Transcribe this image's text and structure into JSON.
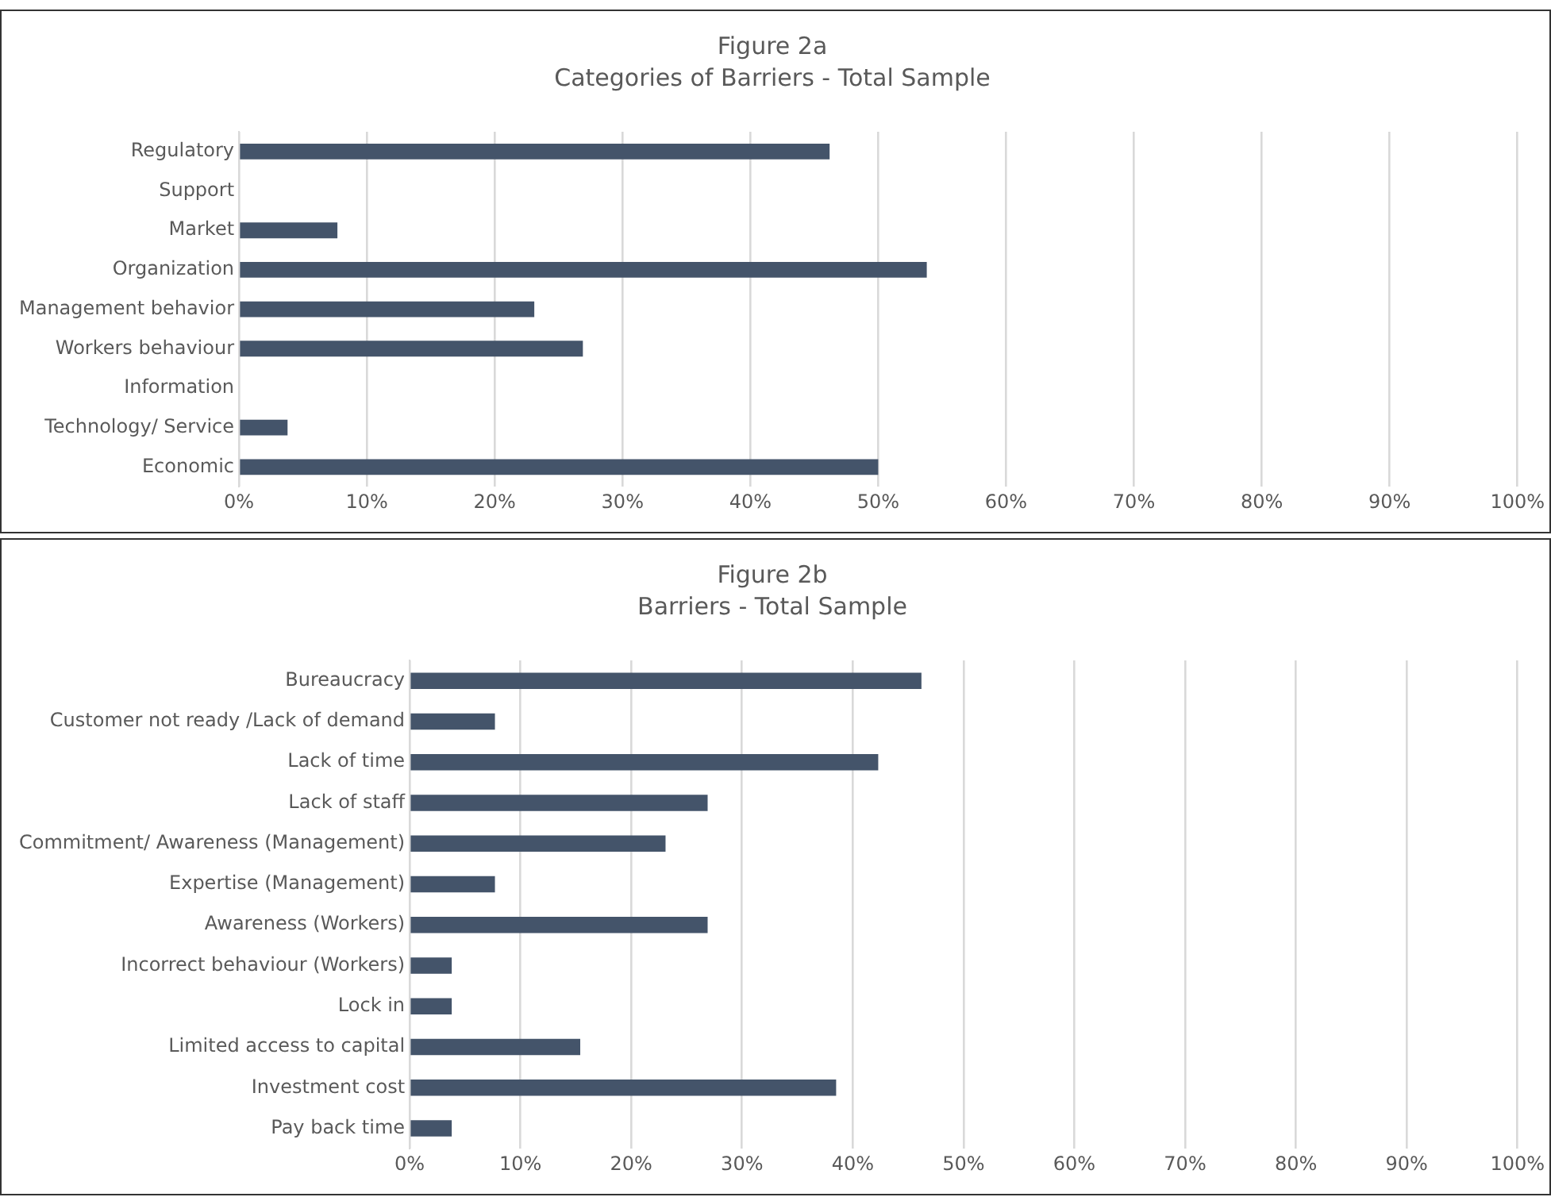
{
  "chart_data": [
    {
      "type": "bar",
      "orientation": "horizontal",
      "title": "Figure 2a",
      "subtitle": "Categories of Barriers - Total Sample",
      "categories": [
        "Regulatory",
        "Support",
        "Market",
        "Organization",
        "Management behavior",
        "Workers behaviour",
        "Information",
        "Technology/ Service",
        "Economic"
      ],
      "values": [
        46.2,
        0,
        7.7,
        53.8,
        23.1,
        26.9,
        0,
        3.8,
        50
      ],
      "color": "#44546a",
      "xlim": [
        0,
        100
      ],
      "xticks": [
        {
          "value": 0,
          "label": "0%"
        },
        {
          "value": 10,
          "label": "10%"
        },
        {
          "value": 20,
          "label": "20%"
        },
        {
          "value": 30,
          "label": "30%"
        },
        {
          "value": 40,
          "label": "40%"
        },
        {
          "value": 50,
          "label": "50%"
        },
        {
          "value": 60,
          "label": "60%"
        },
        {
          "value": 70,
          "label": "70%"
        },
        {
          "value": 80,
          "label": "80%"
        },
        {
          "value": 90,
          "label": "90%"
        },
        {
          "value": 100,
          "label": "100%"
        }
      ],
      "grid": "x"
    },
    {
      "type": "bar",
      "orientation": "horizontal",
      "title": "Figure 2b",
      "subtitle": "Barriers - Total Sample",
      "categories": [
        "Bureaucracy",
        "Customer not ready /Lack of demand",
        "Lack of time",
        "Lack of staff",
        "Commitment/ Awareness (Management)",
        "Expertise (Management)",
        "Awareness (Workers)",
        "Incorrect behaviour (Workers)",
        "Lock in",
        "Limited access to capital",
        "Investment cost",
        "Pay back time"
      ],
      "values": [
        46.2,
        7.7,
        42.3,
        26.9,
        23.1,
        7.7,
        26.9,
        3.8,
        3.8,
        15.4,
        38.5,
        3.8
      ],
      "color": "#44546a",
      "xlim": [
        0,
        100
      ],
      "xticks": [
        {
          "value": 0,
          "label": "0%"
        },
        {
          "value": 10,
          "label": "10%"
        },
        {
          "value": 20,
          "label": "20%"
        },
        {
          "value": 30,
          "label": "30%"
        },
        {
          "value": 40,
          "label": "40%"
        },
        {
          "value": 50,
          "label": "50%"
        },
        {
          "value": 60,
          "label": "60%"
        },
        {
          "value": 70,
          "label": "70%"
        },
        {
          "value": 80,
          "label": "80%"
        },
        {
          "value": 90,
          "label": "90%"
        },
        {
          "value": 100,
          "label": "100%"
        }
      ],
      "grid": "x"
    }
  ]
}
